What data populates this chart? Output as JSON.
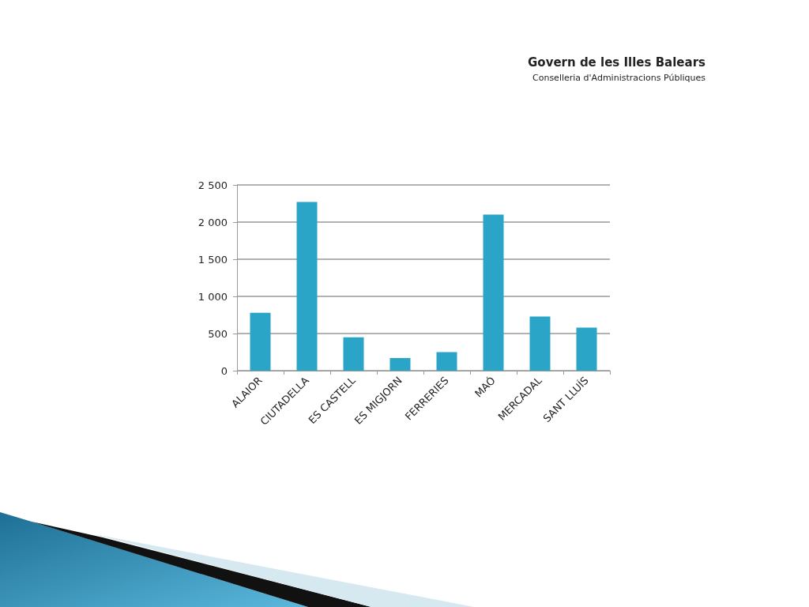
{
  "chart_data": {
    "type": "bar",
    "annotations": [
      "Govern de les Illes Balears",
      "Conselleria d'Administracions Públiques"
    ],
    "categories": [
      "ALAIOR",
      "CIUTADELLA",
      "ES CASTELL",
      "ES MIGJORN",
      "FERRERIES",
      "MAÓ",
      "MERCADAL",
      "SANT LLUÍS"
    ],
    "values": [
      780,
      2270,
      450,
      170,
      250,
      2100,
      730,
      580
    ],
    "color": "#2aa5c8",
    "ylim": [
      0,
      2500
    ],
    "yticks": [
      0,
      500,
      {
        "value": 1000,
        "label": "1 000"
      },
      {
        "value": 1500,
        "label": "1 500"
      },
      {
        "value": 2000,
        "label": "2 000"
      },
      {
        "value": 2500,
        "label": "2 500"
      }
    ],
    "grid": "y"
  }
}
